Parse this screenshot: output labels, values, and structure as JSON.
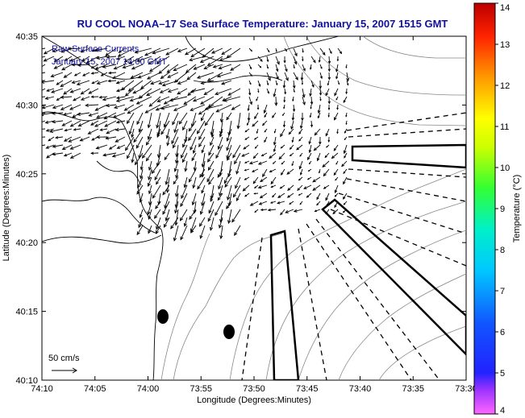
{
  "title": "RU COOL  NOAA–17  Sea Surface Temperature:  January 15, 2007 1515 GMT",
  "annotation": {
    "line1": "Raw Surface Currents",
    "line2": "January 15, 2007 14:00 GMT"
  },
  "scale_label": "50 cm/s",
  "axes": {
    "xlabel": "Longitude (Degrees:Minutes)",
    "ylabel": "Latitude (Degrees:Minutes)",
    "xticks": [
      "74:10",
      "74:05",
      "74:00",
      "73:55",
      "73:50",
      "73:45",
      "73:40",
      "73:35",
      "73:30"
    ],
    "yticks": [
      "40:35",
      "40:30",
      "40:25",
      "40:20",
      "40:15",
      "40:10"
    ]
  },
  "colorbar": {
    "label": "Temperature (°C)",
    "ticks": [
      "4",
      "5",
      "6",
      "7",
      "8",
      "9",
      "10",
      "11",
      "12",
      "13",
      "14"
    ],
    "min": 4,
    "max": 14
  },
  "colors": {
    "title": "#1010a0",
    "coast": "#000000",
    "bathymetry": "#888888",
    "vectors": "#000000"
  }
}
